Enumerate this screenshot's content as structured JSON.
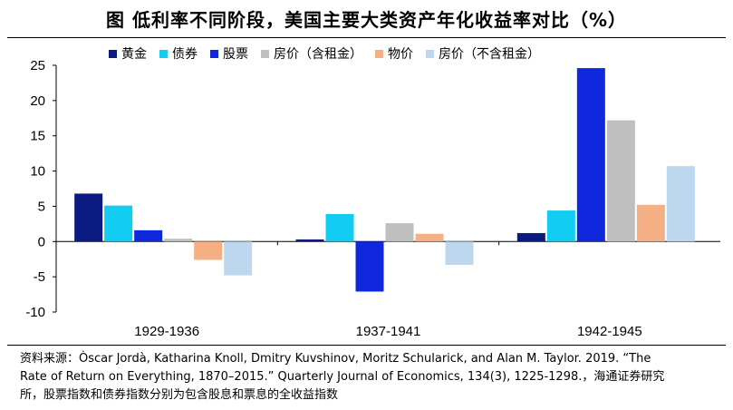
{
  "title": "图 低利率不同阶段，美国主要大类资产年化收益率对比（%）",
  "chart_data": {
    "type": "bar",
    "categories": [
      "1929-1936",
      "1937-1941",
      "1942-1945"
    ],
    "series": [
      {
        "name": "黄金",
        "color": "#0a1a80",
        "values": [
          6.8,
          0.3,
          1.2
        ]
      },
      {
        "name": "债券",
        "color": "#12ccf2",
        "values": [
          5.1,
          3.9,
          4.4
        ]
      },
      {
        "name": "股票",
        "color": "#1028dd",
        "values": [
          1.6,
          -7.1,
          24.6
        ]
      },
      {
        "name": "房价（含租金）",
        "color": "#bfbfbf",
        "values": [
          0.4,
          2.6,
          17.2
        ]
      },
      {
        "name": "物价",
        "color": "#f4b084",
        "values": [
          -2.6,
          1.1,
          5.2
        ]
      },
      {
        "name": "房价（不含租金）",
        "color": "#bdd7ee",
        "values": [
          -4.8,
          -3.3,
          10.7
        ]
      }
    ],
    "ylim": [
      -10,
      25
    ],
    "yticks": [
      25,
      20,
      15,
      10,
      5,
      0,
      -5,
      -10
    ],
    "ytick_labels": [
      "25",
      "20",
      "15",
      "10",
      "5",
      "0",
      "-5",
      "-10"
    ],
    "legend_position": "top"
  },
  "source": {
    "line1": "资料来源：Òscar Jordà, Katharina Knoll, Dmitry Kuvshinov, Moritz Schularick, and Alan M. Taylor. 2019. “The",
    "line2": "Rate of Return on Everything, 1870–2015.” Quarterly Journal of Economics, 134(3), 1225-1298.，海通证券研究",
    "line3": "所，股票指数和债券指数分别为包含股息和票息的全收益指数"
  }
}
